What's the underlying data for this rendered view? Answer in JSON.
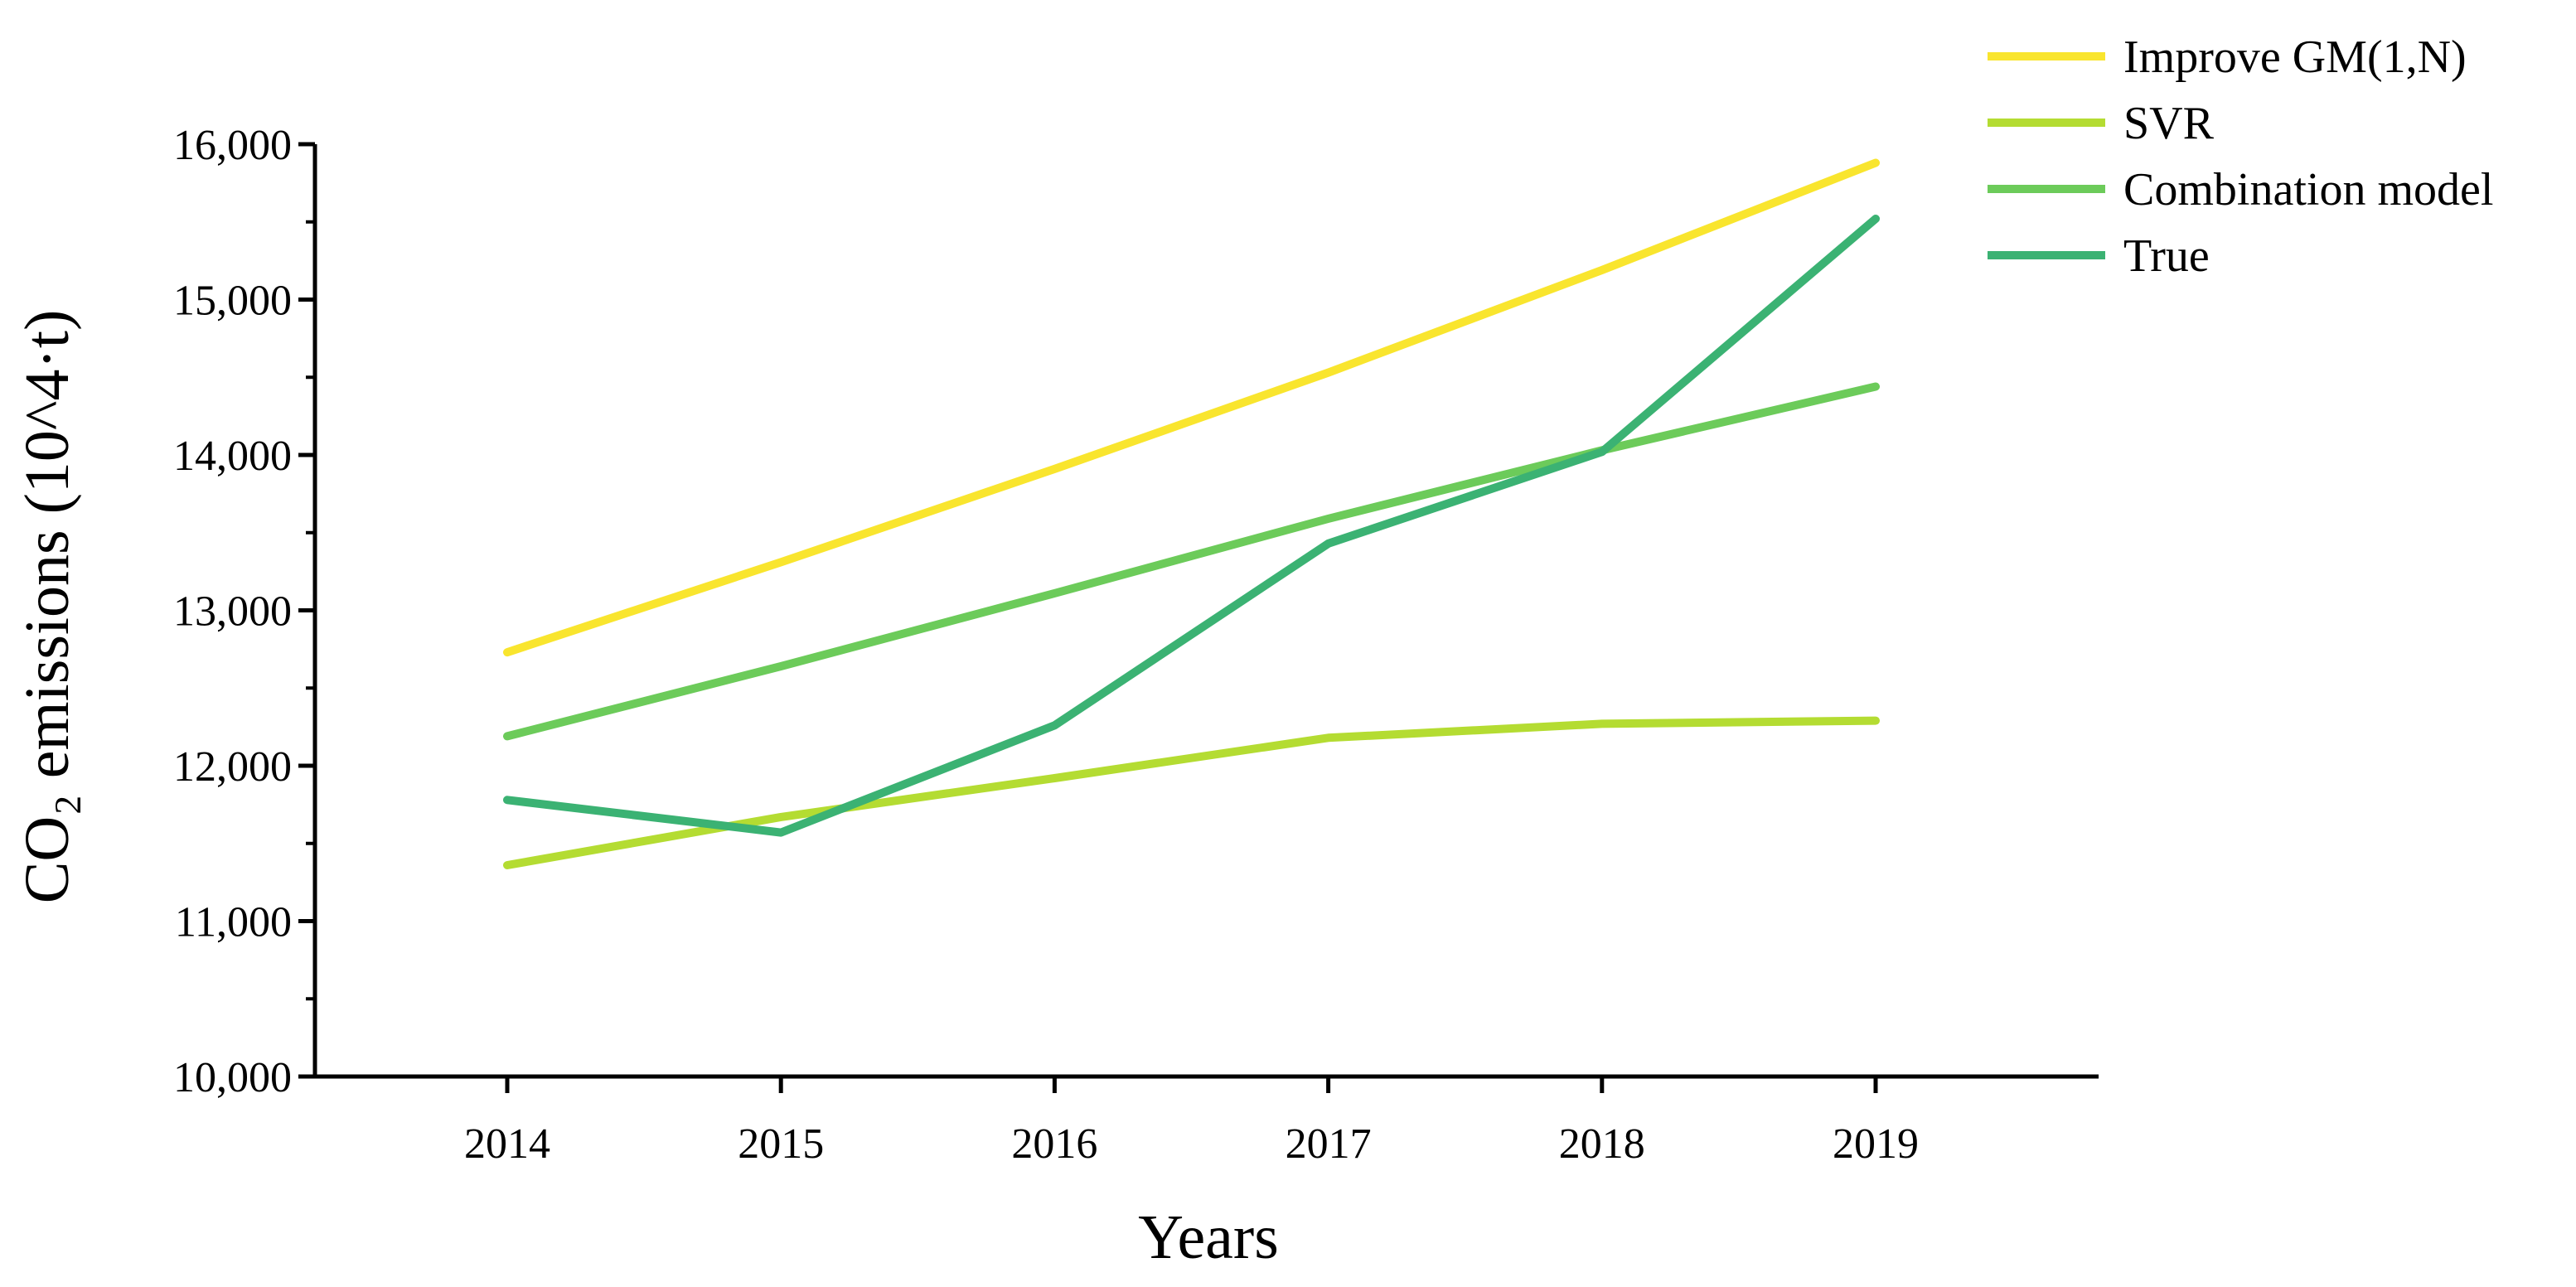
{
  "chart_data": {
    "type": "line",
    "x": [
      2014,
      2015,
      2016,
      2017,
      2018,
      2019
    ],
    "xlabel": "Years",
    "ylabel": "CO₂ emissions (10^4·t)",
    "ylim": [
      10000,
      16000
    ],
    "yticks": [
      10000,
      11000,
      12000,
      13000,
      14000,
      15000,
      16000
    ],
    "ytick_labels": [
      "10,000",
      "11,000",
      "12,000",
      "13,000",
      "14,000",
      "15,000",
      "16,000"
    ],
    "xtick_labels": [
      "2014",
      "2015",
      "2016",
      "2017",
      "2018",
      "2019"
    ],
    "grid": false,
    "legend_position": "top-right",
    "series": [
      {
        "name": "Improve GM(1,N)",
        "color": "#F9E52E",
        "values": [
          12730,
          13310,
          13910,
          14530,
          15190,
          15880
        ]
      },
      {
        "name": "SVR",
        "color": "#B4DC32",
        "values": [
          11360,
          11670,
          11920,
          12180,
          12270,
          12290
        ]
      },
      {
        "name": "Combination model",
        "color": "#6CCB5A",
        "values": [
          12190,
          12640,
          13110,
          13590,
          14030,
          14440
        ]
      },
      {
        "name": "True",
        "color": "#3BB273",
        "values": [
          11780,
          11570,
          12260,
          13430,
          14020,
          15520
        ]
      }
    ]
  }
}
